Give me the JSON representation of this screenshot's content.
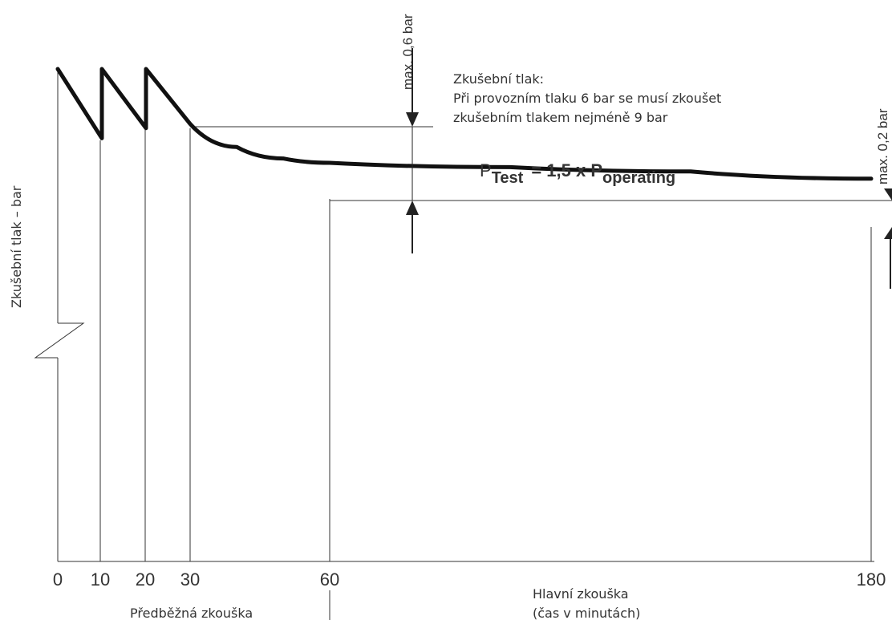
{
  "chart_data": {
    "type": "line",
    "ylabel": "Zkušební tlak – bar",
    "x_ticks": [
      "0",
      "10",
      "20",
      "30",
      "60",
      "180"
    ],
    "phases": {
      "pre_test": "Předběžná zkouška",
      "main_test_line1": "Hlavní zkouška",
      "main_test_line2": "(čas v minutách)"
    },
    "series": [
      {
        "x": [
          0,
          10,
          10,
          20,
          20,
          30,
          40,
          50,
          60,
          100,
          140,
          180
        ],
        "y": [
          9.0,
          8.52,
          9.0,
          8.59,
          9.0,
          8.62,
          8.46,
          8.38,
          8.35,
          8.32,
          8.29,
          8.24
        ]
      }
    ],
    "annotations": {
      "max_drop_first": "max. 0,6 bar",
      "max_drop_second": "max. 0,2 bar",
      "note_title": "Zkušební tlak:",
      "note_line1": "Při provozním tlaku 6 bar se musí zkoušet",
      "note_line2": "zkušebním tlakem nejméně 9 bar",
      "formula_p": "P",
      "formula_test_sub": "Test",
      "formula_mid": "= 1,5 x P",
      "formula_operating_sub": "operating"
    }
  }
}
